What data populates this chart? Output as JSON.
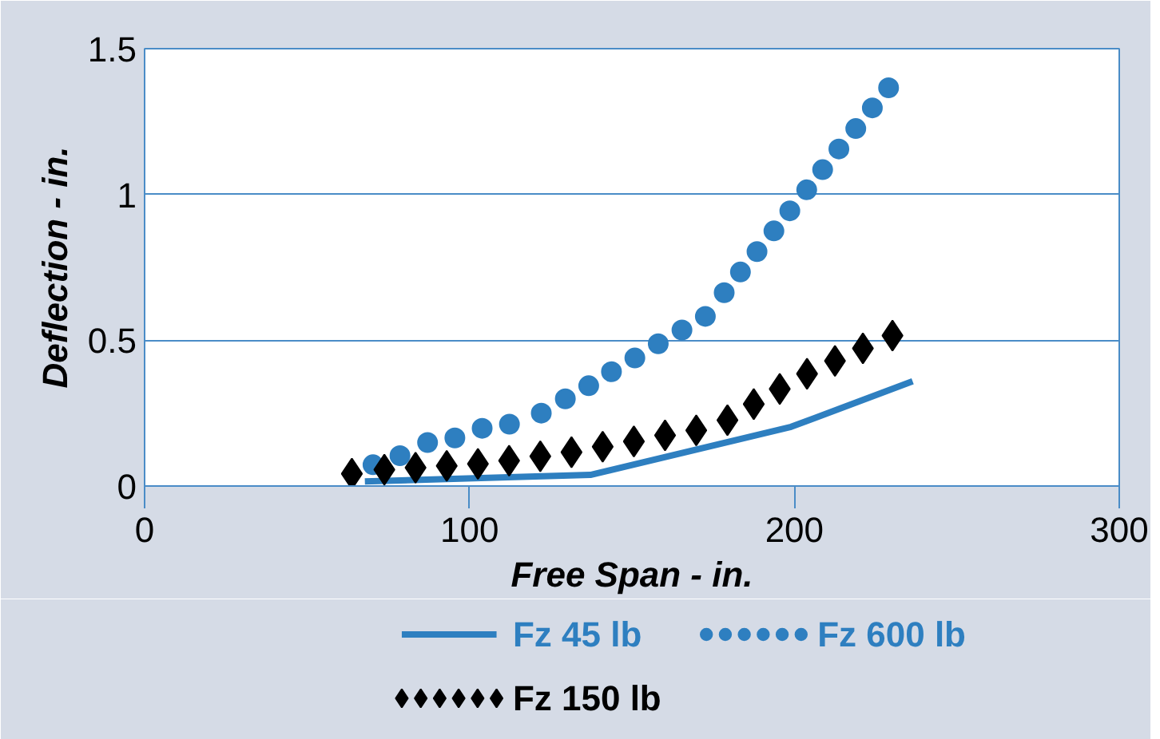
{
  "chart_data": {
    "type": "line",
    "xlabel": "Free Span - in.",
    "ylabel": "Deflection - in.",
    "xlim": [
      0,
      300
    ],
    "xticks": [
      0,
      100,
      200,
      300
    ],
    "ylim": [
      0,
      1.5
    ],
    "yticks": [
      0,
      0.5,
      1,
      1.5
    ],
    "grid": "y",
    "legend": "bottom",
    "series": [
      {
        "name": "Fz 45 lb",
        "line_style": "solid",
        "color": "#2e7fc0",
        "x": [
          67.8,
          137.2,
          199.0,
          236.4
        ],
        "values": [
          0.016,
          0.038,
          0.203,
          0.359
        ]
      },
      {
        "name": "Fz 600 lb",
        "type": "scatter",
        "marker": "circle",
        "color": "#2e7fc0",
        "x": [
          70.3,
          78.6,
          87.1,
          95.5,
          103.9,
          112.3,
          122.1,
          129.5,
          136.7,
          143.7,
          150.9,
          158.1,
          165.4,
          172.6,
          178.4,
          183.4,
          188.5,
          193.7,
          198.6,
          203.8,
          208.7,
          213.7,
          218.9,
          224.0,
          229.0
        ],
        "values": [
          0.073,
          0.104,
          0.149,
          0.165,
          0.198,
          0.212,
          0.25,
          0.299,
          0.344,
          0.392,
          0.439,
          0.488,
          0.535,
          0.582,
          0.663,
          0.734,
          0.804,
          0.875,
          0.944,
          1.016,
          1.085,
          1.156,
          1.226,
          1.297,
          1.366
        ]
      },
      {
        "name": "Fz 150 lb",
        "type": "scatter",
        "marker": "diamond",
        "color": "#000000",
        "x": [
          63.8,
          73.8,
          83.4,
          93.0,
          102.6,
          112.2,
          121.8,
          131.4,
          141.0,
          150.6,
          160.2,
          169.8,
          179.4,
          187.5,
          195.5,
          203.9,
          212.5,
          221.1,
          230.2
        ],
        "values": [
          0.042,
          0.056,
          0.063,
          0.069,
          0.076,
          0.087,
          0.102,
          0.116,
          0.135,
          0.153,
          0.174,
          0.191,
          0.226,
          0.281,
          0.333,
          0.385,
          0.429,
          0.472,
          0.516
        ]
      }
    ]
  }
}
